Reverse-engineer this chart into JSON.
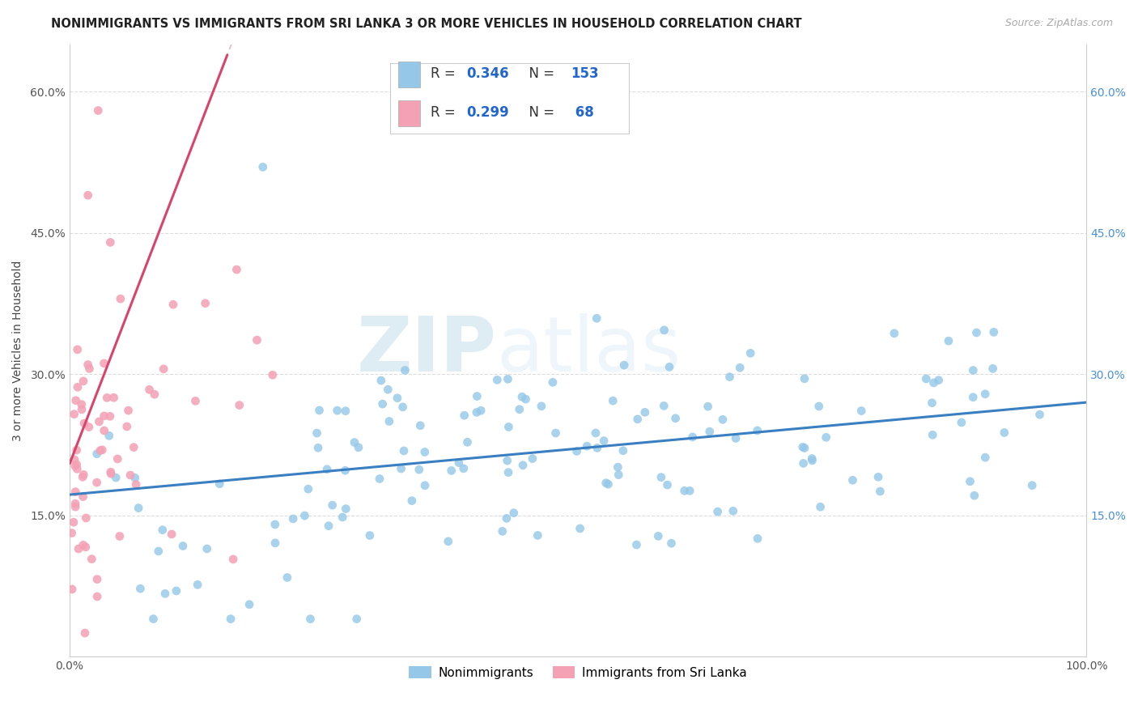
{
  "title": "NONIMMIGRANTS VS IMMIGRANTS FROM SRI LANKA 3 OR MORE VEHICLES IN HOUSEHOLD CORRELATION CHART",
  "source": "Source: ZipAtlas.com",
  "ylabel": "3 or more Vehicles in Household",
  "xlim": [
    0.0,
    1.0
  ],
  "ylim": [
    0.0,
    0.65
  ],
  "ytick_vals": [
    0.15,
    0.3,
    0.45,
    0.6
  ],
  "ytick_labels_left": [
    "15.0%",
    "30.0%",
    "45.0%",
    "60.0%"
  ],
  "ytick_labels_right": [
    "15.0%",
    "30.0%",
    "45.0%",
    "60.0%"
  ],
  "legend1_R": "0.346",
  "legend1_N": "153",
  "legend2_R": "0.299",
  "legend2_N": "68",
  "legend_label1": "Nonimmigrants",
  "legend_label2": "Immigrants from Sri Lanka",
  "blue_color": "#94c7e8",
  "pink_color": "#f4a0b5",
  "line_blue": "#3a7fc1",
  "line_pink": "#d9456a",
  "line_pink_dash": [
    4,
    3
  ],
  "watermark_zip": "ZIP",
  "watermark_atlas": "atlas",
  "title_fontsize": 10.5,
  "axis_label_fontsize": 10,
  "tick_fontsize": 10,
  "right_tick_color": "#4a90d9",
  "grid_color": "#dddddd"
}
